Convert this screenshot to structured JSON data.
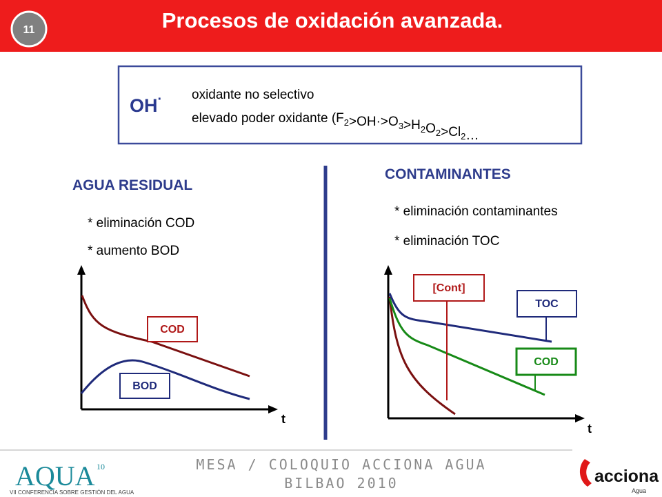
{
  "header": {
    "slide_number": "11",
    "title": "Procesos de oxidación avanzada."
  },
  "box": {
    "symbol": {
      "text": "OH",
      "sup": "·"
    },
    "line1": "oxidante no selectivo",
    "formula": [
      [
        "elevado poder oxidante (F",
        "2"
      ],
      [
        ">OH·>O",
        "3"
      ],
      [
        ">H",
        "2"
      ],
      [
        "O",
        "2"
      ],
      [
        ">Cl",
        "2"
      ],
      [
        "…"
      ]
    ]
  },
  "left": {
    "heading": "AGUA RESIDUAL",
    "bullets": [
      "* eliminación COD",
      "* aumento BOD"
    ],
    "labels": [
      "COD",
      "BOD"
    ],
    "axis": "t"
  },
  "right": {
    "heading": "CONTAMINANTES",
    "bullets": [
      "* eliminación contaminantes",
      "* eliminación TOC"
    ],
    "labels": [
      "[Cont]",
      "TOC",
      "COD"
    ],
    "axis": "t"
  },
  "footer": {
    "lines": [
      "MESA / COLOQUIO ACCIONA AGUA",
      "BILBAO 2010"
    ],
    "aqua": {
      "name": "AQUA",
      "edition": "10",
      "tagline": "VII CONFERENCIA SOBRE GESTIÓN DEL AGUA"
    },
    "acciona": {
      "name": "acciona",
      "division": "Agua"
    }
  }
}
